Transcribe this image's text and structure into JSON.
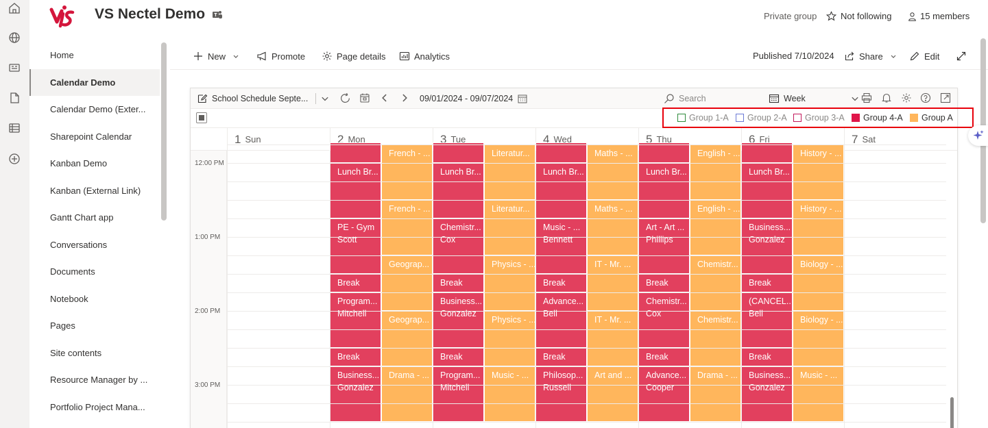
{
  "app": {
    "site_title": "VS Nectel Demo",
    "privacy": "Private group",
    "follow": "Not following",
    "members": "15 members"
  },
  "nav": {
    "items": [
      {
        "label": "Home"
      },
      {
        "label": "Calendar Demo",
        "active": true
      },
      {
        "label": "Calendar Demo (Exter..."
      },
      {
        "label": "Sharepoint Calendar"
      },
      {
        "label": "Kanban Demo"
      },
      {
        "label": "Kanban (External Link)"
      },
      {
        "label": "Gantt Chart app"
      },
      {
        "label": "Conversations"
      },
      {
        "label": "Documents"
      },
      {
        "label": "Notebook"
      },
      {
        "label": "Pages"
      },
      {
        "label": "Site contents"
      },
      {
        "label": "Resource Manager by ..."
      },
      {
        "label": "Portfolio Project Mana..."
      }
    ]
  },
  "cmdbar": {
    "new": "New",
    "promote": "Promote",
    "page_details": "Page details",
    "analytics": "Analytics",
    "published": "Published 7/10/2024",
    "share": "Share",
    "edit": "Edit"
  },
  "calendar": {
    "view_name": "School Schedule Septe...",
    "date_range": "09/01/2024 - 09/07/2024",
    "search_placeholder": "Search",
    "view_mode": "Week",
    "legend": [
      {
        "label": "Group 1-A",
        "color": "#2e8b3c",
        "filled": false
      },
      {
        "label": "Group 2-A",
        "color": "#6b7ad6",
        "filled": false
      },
      {
        "label": "Group 3-A",
        "color": "#c2185b",
        "filled": false
      },
      {
        "label": "Group 4-A",
        "color": "#e0164a",
        "filled": true
      },
      {
        "label": "Group A",
        "color": "#ffb65c",
        "filled": true
      }
    ],
    "days": [
      {
        "num": "1",
        "name": "Sun"
      },
      {
        "num": "2",
        "name": "Mon"
      },
      {
        "num": "3",
        "name": "Tue"
      },
      {
        "num": "4",
        "name": "Wed"
      },
      {
        "num": "5",
        "name": "Thu"
      },
      {
        "num": "6",
        "name": "Fri"
      },
      {
        "num": "7",
        "name": "Sat"
      }
    ],
    "time_labels": [
      "12:00 PM",
      "1:00 PM",
      "2:00 PM",
      "3:00 PM"
    ],
    "events": [
      {
        "day": 1,
        "lane": 0,
        "start": 0,
        "end": 1,
        "l1": "",
        "l2": "",
        "color": "red"
      },
      {
        "day": 1,
        "lane": 0,
        "start": 1,
        "end": 4,
        "l1": "Lunch Br...",
        "l2": "",
        "color": "red"
      },
      {
        "day": 1,
        "lane": 0,
        "start": 4,
        "end": 7,
        "l1": "PE - Gym",
        "l2": "Scott",
        "color": "red"
      },
      {
        "day": 1,
        "lane": 0,
        "start": 7,
        "end": 8,
        "l1": "Break",
        "l2": "",
        "color": "red"
      },
      {
        "day": 1,
        "lane": 0,
        "start": 8,
        "end": 11,
        "l1": "Program...",
        "l2": "Mitchell",
        "color": "red"
      },
      {
        "day": 1,
        "lane": 0,
        "start": 11,
        "end": 12,
        "l1": "Break",
        "l2": "",
        "color": "red"
      },
      {
        "day": 1,
        "lane": 0,
        "start": 12,
        "end": 15,
        "l1": "Business...",
        "l2": "Gonzalez",
        "color": "red"
      },
      {
        "day": 1,
        "lane": 1,
        "start": 0,
        "end": 3,
        "l1": "French - ...",
        "l2": "",
        "color": "orange"
      },
      {
        "day": 1,
        "lane": 1,
        "start": 3,
        "end": 6,
        "l1": "French - ...",
        "l2": "",
        "color": "orange"
      },
      {
        "day": 1,
        "lane": 1,
        "start": 6,
        "end": 9,
        "l1": "Geograp...",
        "l2": "",
        "color": "orange"
      },
      {
        "day": 1,
        "lane": 1,
        "start": 9,
        "end": 12,
        "l1": "Geograp...",
        "l2": "",
        "color": "orange"
      },
      {
        "day": 1,
        "lane": 1,
        "start": 12,
        "end": 15,
        "l1": "Drama - ...",
        "l2": "",
        "color": "orange"
      },
      {
        "day": 2,
        "lane": 0,
        "start": 0,
        "end": 1,
        "l1": "",
        "l2": "",
        "color": "red"
      },
      {
        "day": 2,
        "lane": 0,
        "start": 1,
        "end": 4,
        "l1": "Lunch Br...",
        "l2": "",
        "color": "red"
      },
      {
        "day": 2,
        "lane": 0,
        "start": 4,
        "end": 7,
        "l1": "Chemistr...",
        "l2": "Cox",
        "color": "red"
      },
      {
        "day": 2,
        "lane": 0,
        "start": 7,
        "end": 8,
        "l1": "Break",
        "l2": "",
        "color": "red"
      },
      {
        "day": 2,
        "lane": 0,
        "start": 8,
        "end": 11,
        "l1": "Business...",
        "l2": "Gonzalez",
        "color": "red"
      },
      {
        "day": 2,
        "lane": 0,
        "start": 11,
        "end": 12,
        "l1": "Break",
        "l2": "",
        "color": "red"
      },
      {
        "day": 2,
        "lane": 0,
        "start": 12,
        "end": 15,
        "l1": "Program...",
        "l2": "Mitchell",
        "color": "red"
      },
      {
        "day": 2,
        "lane": 1,
        "start": 0,
        "end": 3,
        "l1": "Literatur...",
        "l2": "",
        "color": "orange"
      },
      {
        "day": 2,
        "lane": 1,
        "start": 3,
        "end": 6,
        "l1": "Literatur...",
        "l2": "",
        "color": "orange"
      },
      {
        "day": 2,
        "lane": 1,
        "start": 6,
        "end": 9,
        "l1": "Physics - ...",
        "l2": "",
        "color": "orange"
      },
      {
        "day": 2,
        "lane": 1,
        "start": 9,
        "end": 12,
        "l1": "Physics - ...",
        "l2": "",
        "color": "orange"
      },
      {
        "day": 2,
        "lane": 1,
        "start": 12,
        "end": 15,
        "l1": "Music - ...",
        "l2": "",
        "color": "orange"
      },
      {
        "day": 3,
        "lane": 0,
        "start": 0,
        "end": 1,
        "l1": "",
        "l2": "",
        "color": "red"
      },
      {
        "day": 3,
        "lane": 0,
        "start": 1,
        "end": 4,
        "l1": "Lunch Br...",
        "l2": "",
        "color": "red"
      },
      {
        "day": 3,
        "lane": 0,
        "start": 4,
        "end": 7,
        "l1": "Music - ...",
        "l2": "Bennett",
        "color": "red"
      },
      {
        "day": 3,
        "lane": 0,
        "start": 7,
        "end": 8,
        "l1": "Break",
        "l2": "",
        "color": "red"
      },
      {
        "day": 3,
        "lane": 0,
        "start": 8,
        "end": 11,
        "l1": "Advance...",
        "l2": "Bell",
        "color": "red"
      },
      {
        "day": 3,
        "lane": 0,
        "start": 11,
        "end": 12,
        "l1": "Break",
        "l2": "",
        "color": "red"
      },
      {
        "day": 3,
        "lane": 0,
        "start": 12,
        "end": 15,
        "l1": "Philosop...",
        "l2": "Russell",
        "color": "red"
      },
      {
        "day": 3,
        "lane": 1,
        "start": 0,
        "end": 3,
        "l1": "Maths - ...",
        "l2": "",
        "color": "orange"
      },
      {
        "day": 3,
        "lane": 1,
        "start": 3,
        "end": 6,
        "l1": "Maths - ...",
        "l2": "",
        "color": "orange"
      },
      {
        "day": 3,
        "lane": 1,
        "start": 6,
        "end": 9,
        "l1": "IT - Mr. ...",
        "l2": "",
        "color": "orange"
      },
      {
        "day": 3,
        "lane": 1,
        "start": 9,
        "end": 12,
        "l1": "IT - Mr. ...",
        "l2": "",
        "color": "orange"
      },
      {
        "day": 3,
        "lane": 1,
        "start": 12,
        "end": 15,
        "l1": "Art and ...",
        "l2": "",
        "color": "orange"
      },
      {
        "day": 4,
        "lane": 0,
        "start": 0,
        "end": 1,
        "l1": "",
        "l2": "",
        "color": "red"
      },
      {
        "day": 4,
        "lane": 0,
        "start": 1,
        "end": 4,
        "l1": "Lunch Br...",
        "l2": "",
        "color": "red"
      },
      {
        "day": 4,
        "lane": 0,
        "start": 4,
        "end": 7,
        "l1": "Art - Art ...",
        "l2": "Phillips",
        "color": "red"
      },
      {
        "day": 4,
        "lane": 0,
        "start": 7,
        "end": 8,
        "l1": "Break",
        "l2": "",
        "color": "red"
      },
      {
        "day": 4,
        "lane": 0,
        "start": 8,
        "end": 11,
        "l1": "Chemistr...",
        "l2": "Cox",
        "color": "red"
      },
      {
        "day": 4,
        "lane": 0,
        "start": 11,
        "end": 12,
        "l1": "Break",
        "l2": "",
        "color": "red"
      },
      {
        "day": 4,
        "lane": 0,
        "start": 12,
        "end": 15,
        "l1": "Advance...",
        "l2": "Cooper",
        "color": "red"
      },
      {
        "day": 4,
        "lane": 1,
        "start": 0,
        "end": 3,
        "l1": "English - ...",
        "l2": "",
        "color": "orange"
      },
      {
        "day": 4,
        "lane": 1,
        "start": 3,
        "end": 6,
        "l1": "English - ...",
        "l2": "",
        "color": "orange"
      },
      {
        "day": 4,
        "lane": 1,
        "start": 6,
        "end": 9,
        "l1": "Chemistr...",
        "l2": "",
        "color": "orange"
      },
      {
        "day": 4,
        "lane": 1,
        "start": 9,
        "end": 12,
        "l1": "Chemistr...",
        "l2": "",
        "color": "orange"
      },
      {
        "day": 4,
        "lane": 1,
        "start": 12,
        "end": 15,
        "l1": "Drama - ...",
        "l2": "",
        "color": "orange"
      },
      {
        "day": 5,
        "lane": 0,
        "start": 0,
        "end": 1,
        "l1": "",
        "l2": "",
        "color": "red"
      },
      {
        "day": 5,
        "lane": 0,
        "start": 1,
        "end": 4,
        "l1": "Lunch Br...",
        "l2": "",
        "color": "red"
      },
      {
        "day": 5,
        "lane": 0,
        "start": 4,
        "end": 7,
        "l1": "Business...",
        "l2": "Gonzalez",
        "color": "red"
      },
      {
        "day": 5,
        "lane": 0,
        "start": 7,
        "end": 8,
        "l1": "Break",
        "l2": "",
        "color": "red"
      },
      {
        "day": 5,
        "lane": 0,
        "start": 8,
        "end": 11,
        "l1": "(CANCEL...",
        "l2": "Bell",
        "color": "red"
      },
      {
        "day": 5,
        "lane": 0,
        "start": 11,
        "end": 12,
        "l1": "Break",
        "l2": "",
        "color": "red"
      },
      {
        "day": 5,
        "lane": 0,
        "start": 12,
        "end": 15,
        "l1": "Business...",
        "l2": "Gonzalez",
        "color": "red"
      },
      {
        "day": 5,
        "lane": 1,
        "start": 0,
        "end": 3,
        "l1": "History - ...",
        "l2": "",
        "color": "orange"
      },
      {
        "day": 5,
        "lane": 1,
        "start": 3,
        "end": 6,
        "l1": "History - ...",
        "l2": "",
        "color": "orange"
      },
      {
        "day": 5,
        "lane": 1,
        "start": 6,
        "end": 9,
        "l1": "Biology - ...",
        "l2": "",
        "color": "orange"
      },
      {
        "day": 5,
        "lane": 1,
        "start": 9,
        "end": 12,
        "l1": "Biology - ...",
        "l2": "",
        "color": "orange"
      },
      {
        "day": 5,
        "lane": 1,
        "start": 12,
        "end": 15,
        "l1": "Music - ...",
        "l2": "",
        "color": "orange"
      }
    ]
  }
}
